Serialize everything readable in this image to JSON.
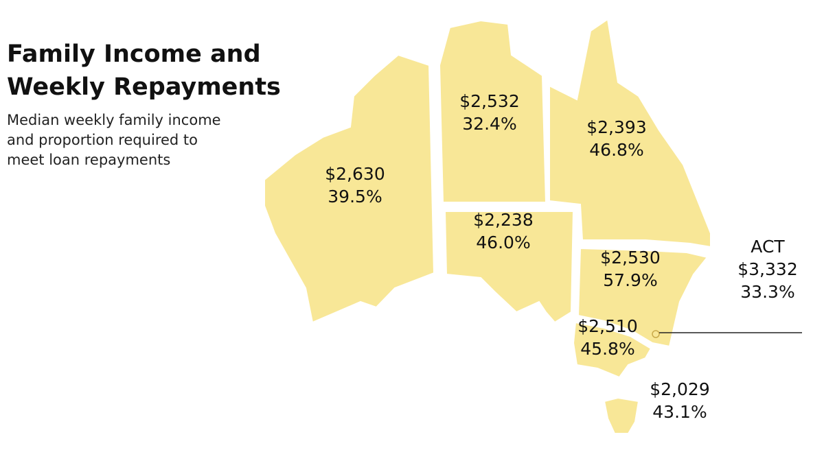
{
  "title": "Family Income and Weekly Repayments",
  "subtitle": "Median weekly family income and proportion required to meet loan repayments",
  "regions": [
    {
      "income": "$2,630",
      "share": "39.5%"
    },
    {
      "income": "$2,532",
      "share": "32.4%"
    },
    {
      "income": "$2,393",
      "share": "46.8%"
    },
    {
      "income": "$2,238",
      "share": "46.0%"
    },
    {
      "income": "$2,530",
      "share": "57.9%"
    },
    {
      "name": "ACT",
      "income": "$3,332",
      "share": "33.3%"
    },
    {
      "income": "$2,510",
      "share": "45.8%"
    },
    {
      "income": "$2,029",
      "share": "43.1%"
    }
  ]
}
